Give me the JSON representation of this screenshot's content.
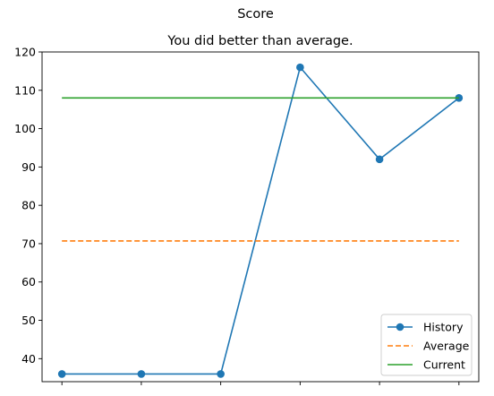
{
  "chart_data": {
    "type": "line",
    "suptitle": "Score",
    "title": "You did better than average.",
    "xlabel": "",
    "ylabel": "",
    "x": [
      0,
      1,
      2,
      3,
      4,
      5
    ],
    "xtick_labels": [
      "",
      "",
      "",
      "",
      "",
      ""
    ],
    "ylim": [
      34,
      120
    ],
    "yticks": [
      40,
      50,
      60,
      70,
      80,
      90,
      100,
      110,
      120
    ],
    "grid": false,
    "legend_position": "lower-right",
    "series": [
      {
        "name": "History",
        "style": "solid",
        "marker": "circle",
        "color": "#1f77b4",
        "values": [
          36,
          36,
          36,
          116,
          92,
          108
        ]
      },
      {
        "name": "Average",
        "style": "dashed",
        "marker": "none",
        "color": "#ff7f0e",
        "values": [
          70.7,
          70.7,
          70.7,
          70.7,
          70.7,
          70.7
        ]
      },
      {
        "name": "Current",
        "style": "solid",
        "marker": "none",
        "color": "#2ca02c",
        "values": [
          108,
          108,
          108,
          108,
          108,
          108
        ]
      }
    ]
  }
}
